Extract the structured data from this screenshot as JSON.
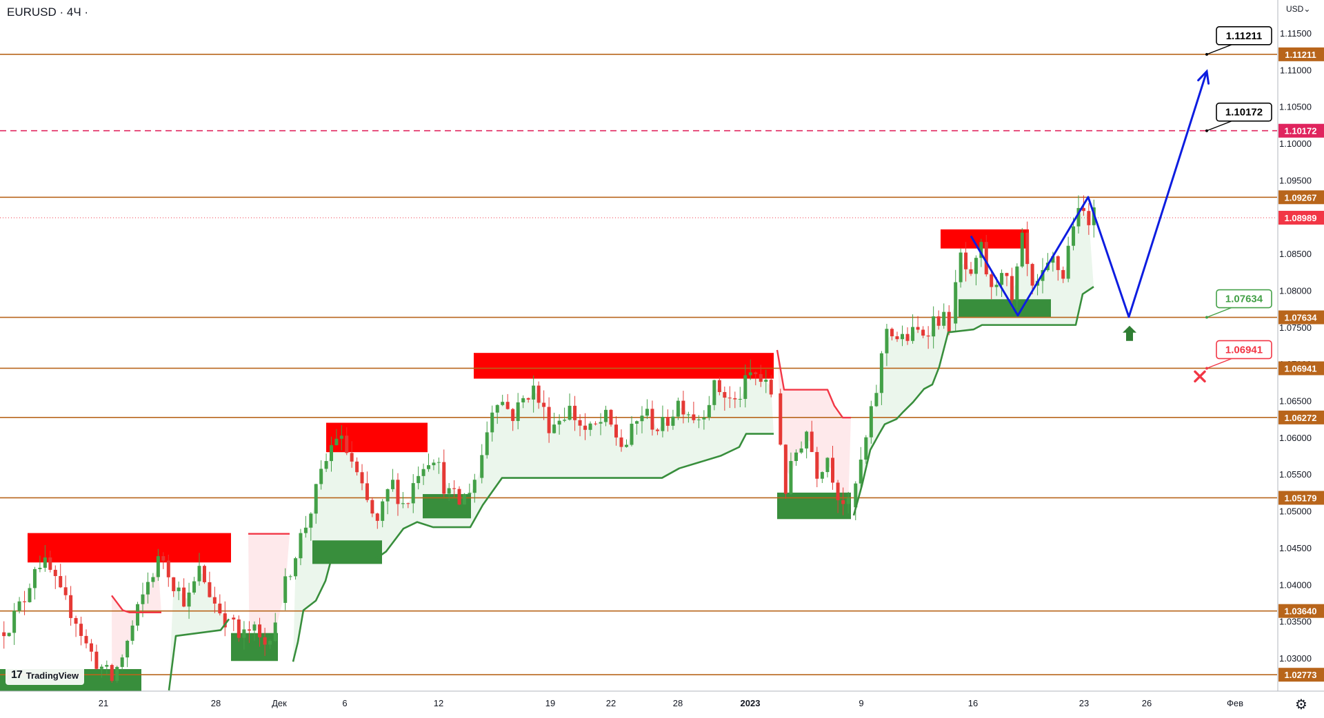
{
  "header": {
    "symbol": "EURUSD · 4Ч ·",
    "currency": "USD⌄"
  },
  "watermark": {
    "label": "TradingView"
  },
  "chart_data": {
    "type": "candlestick",
    "title": "EURUSD · 4Ч ·",
    "ylim": [
      1.0255,
      1.1195
    ],
    "y_ticks": [
      1.03,
      1.035,
      1.04,
      1.045,
      1.05,
      1.055,
      1.06,
      1.065,
      1.07,
      1.075,
      1.08,
      1.085,
      1.09,
      1.095,
      1.1,
      1.105,
      1.11,
      1.115
    ],
    "y_tick_labels": [
      "1.03000",
      "1.03500",
      "1.04000",
      "1.04500",
      "1.05000",
      "1.05500",
      "1.06000",
      "1.06500",
      "1.07000",
      "1.07500",
      "1.08000",
      "1.08500",
      "1.09000",
      "1.09500",
      "1.10000",
      "1.10500",
      "1.11000",
      "1.11500"
    ],
    "x_ticks": [
      "21",
      "28",
      "Дек",
      "6",
      "12",
      "19",
      "22",
      "28",
      "2023",
      "9",
      "16",
      "23",
      "26",
      "Фев"
    ],
    "price_levels": [
      {
        "value": 1.11211,
        "label": "1.11211",
        "color": "#b8651b",
        "style": "solid"
      },
      {
        "value": 1.10172,
        "label": "1.10172",
        "color": "#e0245e",
        "style": "dashed"
      },
      {
        "value": 1.09267,
        "label": "1.09267",
        "color": "#b8651b",
        "style": "solid"
      },
      {
        "value": 1.07634,
        "label": "1.07634",
        "color": "#b8651b",
        "style": "solid"
      },
      {
        "value": 1.06941,
        "label": "1.06941",
        "color": "#b8651b",
        "style": "solid"
      },
      {
        "value": 1.06272,
        "label": "1.06272",
        "color": "#b8651b",
        "style": "solid"
      },
      {
        "value": 1.05179,
        "label": "1.05179",
        "color": "#b8651b",
        "style": "solid"
      },
      {
        "value": 1.0364,
        "label": "1.03640",
        "color": "#b8651b",
        "style": "solid"
      },
      {
        "value": 1.02773,
        "label": "1.02773",
        "color": "#b8651b",
        "style": "solid"
      }
    ],
    "current_price": {
      "value": 1.08989,
      "label": "1.08989",
      "color": "#f23645"
    },
    "callouts": [
      {
        "label": "1.11211",
        "price": 1.11211,
        "color": "#000000"
      },
      {
        "label": "1.10172",
        "price": 1.10172,
        "color": "#000000"
      },
      {
        "label": "1.07634",
        "price": 1.07634,
        "color": "#43a047"
      },
      {
        "label": "1.06941",
        "price": 1.06941,
        "color": "#f23645"
      }
    ],
    "resistance_zones": [
      {
        "x0": 40,
        "x1": 335,
        "top": 1.047,
        "bottom": 1.043
      },
      {
        "x0": 473,
        "x1": 620,
        "top": 1.062,
        "bottom": 1.058
      },
      {
        "x0": 687,
        "x1": 1122,
        "top": 1.0715,
        "bottom": 1.068
      },
      {
        "x0": 1364,
        "x1": 1492,
        "top": 1.0883,
        "bottom": 1.0857
      }
    ],
    "support_zones": [
      {
        "x0": 0,
        "x1": 205,
        "top": 1.0285,
        "bottom": 1.0255
      },
      {
        "x0": 335,
        "x1": 403,
        "top": 1.0334,
        "bottom": 1.0296
      },
      {
        "x0": 453,
        "x1": 554,
        "top": 1.046,
        "bottom": 1.0428
      },
      {
        "x0": 613,
        "x1": 683,
        "top": 1.0523,
        "bottom": 1.049
      },
      {
        "x0": 1127,
        "x1": 1234,
        "top": 1.0525,
        "bottom": 1.0489
      },
      {
        "x0": 1390,
        "x1": 1524,
        "top": 1.0788,
        "bottom": 1.0764
      }
    ],
    "supertrend_up": [
      [
        [
          245,
          1.0256
        ],
        [
          255,
          1.033
        ],
        [
          320,
          1.0338
        ],
        [
          332,
          1.0353
        ]
      ],
      [
        [
          425,
          1.0295
        ],
        [
          432,
          1.0322
        ],
        [
          440,
          1.0365
        ],
        [
          458,
          1.0378
        ],
        [
          472,
          1.0405
        ],
        [
          480,
          1.0433
        ],
        [
          545,
          1.0435
        ],
        [
          560,
          1.0445
        ],
        [
          585,
          1.0476
        ],
        [
          605,
          1.0485
        ],
        [
          628,
          1.0478
        ],
        [
          648,
          1.0478
        ],
        [
          682,
          1.0478
        ],
        [
          700,
          1.0508
        ],
        [
          728,
          1.0545
        ],
        [
          960,
          1.0545
        ],
        [
          985,
          1.0558
        ],
        [
          1045,
          1.0575
        ],
        [
          1072,
          1.0587
        ],
        [
          1082,
          1.0605
        ],
        [
          1122,
          1.0605
        ]
      ],
      [
        [
          1238,
          1.0494
        ],
        [
          1250,
          1.0535
        ],
        [
          1262,
          1.0583
        ],
        [
          1275,
          1.0605
        ],
        [
          1283,
          1.0618
        ],
        [
          1300,
          1.0625
        ],
        [
          1310,
          1.0635
        ],
        [
          1324,
          1.0648
        ],
        [
          1340,
          1.0666
        ],
        [
          1352,
          1.0672
        ],
        [
          1362,
          1.0696
        ],
        [
          1375,
          1.0743
        ],
        [
          1412,
          1.0747
        ],
        [
          1424,
          1.0753
        ],
        [
          1560,
          1.0753
        ],
        [
          1570,
          1.0795
        ],
        [
          1586,
          1.0805
        ]
      ]
    ],
    "supertrend_down": [
      [
        [
          162,
          1.0385
        ],
        [
          178,
          1.0365
        ],
        [
          188,
          1.0362
        ],
        [
          234,
          1.0362
        ]
      ],
      [
        [
          360,
          1.0469
        ],
        [
          420,
          1.0469
        ]
      ],
      [
        [
          1127,
          1.0719
        ],
        [
          1137,
          1.0665
        ],
        [
          1200,
          1.0665
        ],
        [
          1210,
          1.0643
        ],
        [
          1222,
          1.0627
        ],
        [
          1234,
          1.0627
        ]
      ]
    ],
    "forecast_path": [
      [
        1408,
        1.0874
      ],
      [
        1476,
        1.0766
      ],
      [
        1578,
        1.0927
      ],
      [
        1637,
        1.0764
      ],
      [
        1750,
        1.1098
      ]
    ],
    "annotations": [
      {
        "type": "buy-arrow",
        "x": 1638,
        "price": 1.0752
      },
      {
        "type": "stop-cross",
        "x": 1740,
        "price": 1.0683
      }
    ],
    "segments": [
      {
        "x0": 2,
        "x1": 330,
        "start": 1.0335,
        "points": [
          1.035,
          1.038,
          1.0435,
          1.042,
          1.038,
          1.036,
          1.0315,
          1.029,
          1.027,
          1.031,
          1.036,
          1.041,
          1.044,
          1.04,
          1.0375,
          1.042,
          1.038,
          1.0355
        ]
      },
      {
        "x0": 335,
        "x1": 403,
        "start": 1.0355,
        "points": [
          1.0325,
          1.034,
          1.0315,
          1.0355
        ]
      },
      {
        "x0": 410,
        "x1": 692,
        "start": 1.0375,
        "points": [
          1.044,
          1.049,
          1.055,
          1.0605,
          1.0575,
          1.052,
          1.048,
          1.054,
          1.0505,
          1.056,
          1.058,
          1.0525,
          1.051,
          1.0545
        ]
      },
      {
        "x0": 695,
        "x1": 1122,
        "start": 1.0545,
        "points": [
          1.066,
          1.063,
          1.067,
          1.0615,
          1.064,
          1.0605,
          1.0625,
          1.0585,
          1.0635,
          1.061,
          1.065,
          1.0625,
          1.067,
          1.0645,
          1.069,
          1.066
        ]
      },
      {
        "x0": 1128,
        "x1": 1234,
        "start": 1.066,
        "points": [
          1.053,
          1.058,
          1.061,
          1.0555,
          1.0575,
          1.0525,
          1.0505
        ]
      },
      {
        "x0": 1237,
        "x1": 1380,
        "start": 1.0505,
        "points": [
          1.0575,
          1.0655,
          1.0755,
          1.073,
          1.074,
          1.0745,
          1.0765,
          1.0755
        ]
      },
      {
        "x0": 1382,
        "x1": 1590,
        "start": 1.0755,
        "points": [
          1.0845,
          1.081,
          1.0855,
          1.0795,
          1.0835,
          1.078,
          1.0865,
          1.0795,
          1.0815,
          1.084,
          1.082,
          1.0895,
          1.0905,
          1.09
        ]
      }
    ]
  }
}
